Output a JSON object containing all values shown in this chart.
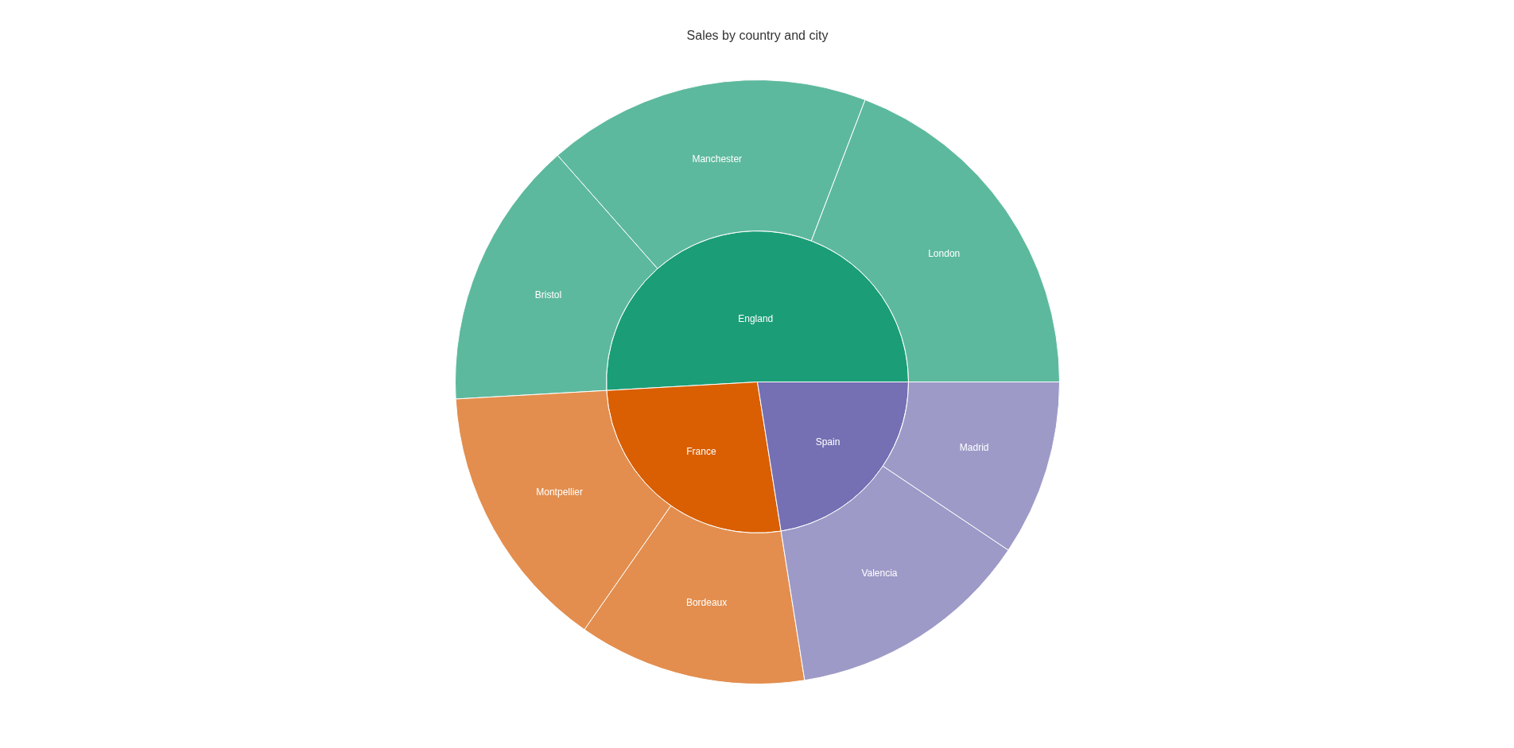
{
  "chart_data": {
    "type": "pie",
    "title": "Sales by country and city",
    "series": [
      {
        "values": [
          50.9,
          26.6,
          22.5
        ],
        "colors": [
          "#1b9e77",
          "#d95f02",
          "#7570b3"
        ],
        "value_labels": [
          "England",
          "France",
          "Spain"
        ]
      },
      {
        "type": "donut",
        "values": [
          19.2,
          17.3,
          14.4,
          14.4,
          12.2,
          13.1,
          9.4
        ],
        "colors": [
          "#5db99d",
          "#5db99d",
          "#5db99d",
          "#e38e4e",
          "#e38e4e",
          "#9d9ac8",
          "#9d9ac8"
        ],
        "value_labels": [
          "London",
          "Manchester",
          "Bristol",
          "Montpellier",
          "Bordeaux",
          "Valencia",
          "Madrid"
        ]
      }
    ]
  }
}
